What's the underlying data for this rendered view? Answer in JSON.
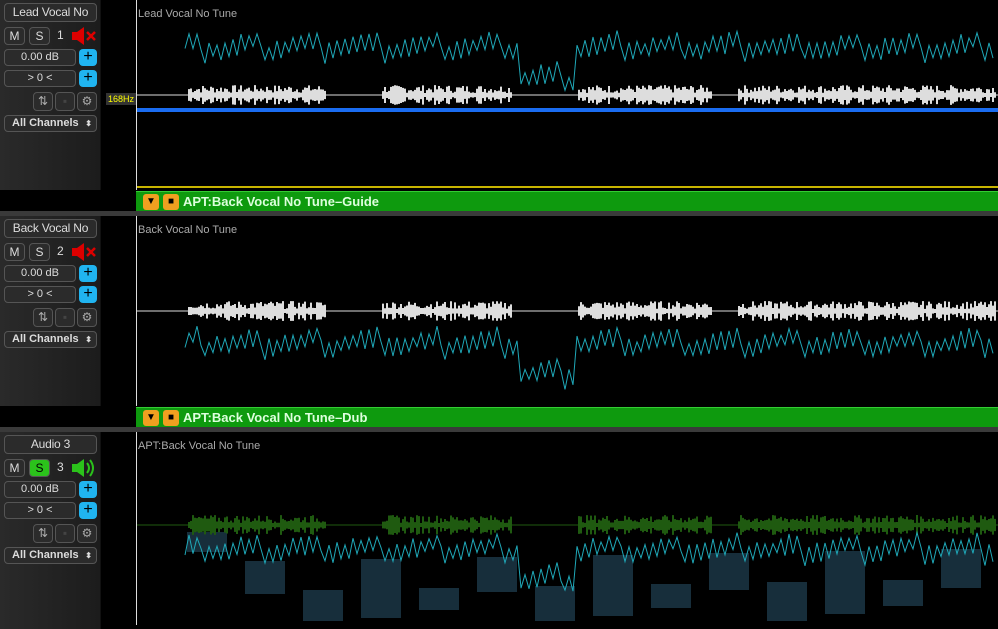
{
  "tracks": [
    {
      "name": "Lead Vocal No",
      "mute": "M",
      "solo": "S",
      "solo_active": false,
      "number": "1",
      "speaker": "muted-speaker-icon",
      "volume": "0.00 dB",
      "pan": "> 0 <",
      "channels": "All Channels",
      "clip_label": "Lead Vocal No Tune",
      "pitch_marker": "168Hz",
      "strip": "APT:Back Vocal No Tune–Guide"
    },
    {
      "name": "Back Vocal No",
      "mute": "M",
      "solo": "S",
      "solo_active": false,
      "number": "2",
      "speaker": "muted-speaker-icon",
      "volume": "0.00 dB",
      "pan": "> 0 <",
      "channels": "All Channels",
      "clip_label": "Back Vocal No Tune",
      "strip": "APT:Back Vocal No Tune–Dub"
    },
    {
      "name": "Audio 3",
      "mute": "M",
      "solo": "S",
      "solo_active": true,
      "number": "3",
      "speaker": "speaker-on-icon",
      "volume": "0.00 dB",
      "pan": "> 0 <",
      "channels": "All Channels",
      "clip_label": "APT:Back Vocal No Tune"
    }
  ],
  "colors": {
    "solo_on": "#2bc21b",
    "strip": "#0e9a0e",
    "plus": "#20b4f0",
    "pitch": "#1fa8b8",
    "muted": "#d00000"
  }
}
